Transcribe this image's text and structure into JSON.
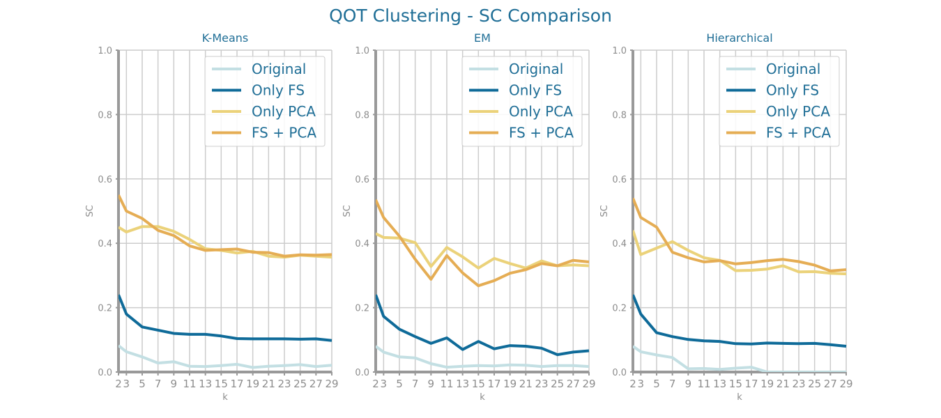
{
  "figure": {
    "title": "QOT Clustering - SC Comparison",
    "colors": {
      "title": "#1f6e96",
      "tick": "#8c8c8c",
      "grid": "#cccccc",
      "axis": "#999999",
      "legend_text": "#1f6e96"
    }
  },
  "chart_data": [
    {
      "type": "line",
      "title": "K-Means",
      "xlabel": "k",
      "ylabel": "SC",
      "xlim": [
        2,
        29
      ],
      "ylim": [
        0.0,
        1.0
      ],
      "grid": true,
      "legend_position": "top-right",
      "x": [
        2,
        3,
        5,
        7,
        9,
        11,
        13,
        15,
        17,
        19,
        21,
        23,
        25,
        27,
        29
      ],
      "xticks": [
        2,
        3,
        5,
        7,
        9,
        11,
        13,
        15,
        17,
        19,
        21,
        23,
        25,
        27,
        29
      ],
      "yticks": [
        "0.0",
        "0.2",
        "0.4",
        "0.6",
        "0.8",
        "1.0"
      ],
      "series": [
        {
          "name": "Original",
          "color": "#c3dfe3",
          "values": [
            0.082,
            0.063,
            0.047,
            0.028,
            0.032,
            0.018,
            0.017,
            0.02,
            0.024,
            0.014,
            0.018,
            0.02,
            0.023,
            0.017,
            0.021
          ]
        },
        {
          "name": "Only FS",
          "color": "#0f6b99",
          "values": [
            0.24,
            0.18,
            0.14,
            0.13,
            0.12,
            0.117,
            0.117,
            0.112,
            0.104,
            0.103,
            0.103,
            0.103,
            0.102,
            0.103,
            0.098
          ]
        },
        {
          "name": "Only PCA",
          "color": "#ebd27a",
          "values": [
            0.45,
            0.435,
            0.452,
            0.452,
            0.437,
            0.412,
            0.383,
            0.378,
            0.37,
            0.375,
            0.36,
            0.357,
            0.363,
            0.36,
            0.357
          ]
        },
        {
          "name": "FS + PCA",
          "color": "#e5ad54",
          "values": [
            0.55,
            0.5,
            0.477,
            0.44,
            0.424,
            0.392,
            0.378,
            0.38,
            0.382,
            0.372,
            0.371,
            0.36,
            0.364,
            0.363,
            0.365
          ]
        }
      ]
    },
    {
      "type": "line",
      "title": "EM",
      "xlabel": "k",
      "ylabel": "SC",
      "xlim": [
        2,
        29
      ],
      "ylim": [
        0.0,
        1.0
      ],
      "grid": true,
      "legend_position": "top-right",
      "x": [
        2,
        3,
        5,
        7,
        9,
        11,
        13,
        15,
        17,
        19,
        21,
        23,
        25,
        27,
        29
      ],
      "xticks": [
        2,
        3,
        5,
        7,
        9,
        11,
        13,
        15,
        17,
        19,
        21,
        23,
        25,
        27,
        29
      ],
      "yticks": [
        "0.0",
        "0.2",
        "0.4",
        "0.6",
        "0.8",
        "1.0"
      ],
      "series": [
        {
          "name": "Original",
          "color": "#c3dfe3",
          "values": [
            0.08,
            0.062,
            0.047,
            0.044,
            0.026,
            0.015,
            0.018,
            0.02,
            0.019,
            0.022,
            0.021,
            0.017,
            0.02,
            0.02,
            0.017
          ]
        },
        {
          "name": "Only FS",
          "color": "#0f6b99",
          "values": [
            0.24,
            0.173,
            0.133,
            0.11,
            0.089,
            0.106,
            0.07,
            0.095,
            0.072,
            0.082,
            0.08,
            0.074,
            0.054,
            0.062,
            0.066
          ]
        },
        {
          "name": "Only PCA",
          "color": "#ebd27a",
          "values": [
            0.43,
            0.418,
            0.416,
            0.402,
            0.328,
            0.387,
            0.358,
            0.323,
            0.353,
            0.337,
            0.323,
            0.345,
            0.33,
            0.333,
            0.33
          ]
        },
        {
          "name": "FS + PCA",
          "color": "#e5ad54",
          "values": [
            0.535,
            0.48,
            0.422,
            0.35,
            0.288,
            0.362,
            0.308,
            0.268,
            0.284,
            0.307,
            0.318,
            0.337,
            0.33,
            0.347,
            0.342
          ]
        }
      ]
    },
    {
      "type": "line",
      "title": "Hierarchical",
      "xlabel": "k",
      "ylabel": "SC",
      "xlim": [
        2,
        29
      ],
      "ylim": [
        0.0,
        1.0
      ],
      "grid": true,
      "legend_position": "top-right",
      "x": [
        2,
        3,
        5,
        7,
        9,
        11,
        13,
        15,
        17,
        19,
        21,
        23,
        25,
        27,
        29
      ],
      "xticks": [
        2,
        3,
        5,
        7,
        9,
        11,
        13,
        15,
        17,
        19,
        21,
        23,
        25,
        27,
        29
      ],
      "yticks": [
        "0.0",
        "0.2",
        "0.4",
        "0.6",
        "0.8",
        "1.0"
      ],
      "series": [
        {
          "name": "Original",
          "color": "#c3dfe3",
          "values": [
            0.08,
            0.063,
            0.053,
            0.045,
            0.01,
            0.011,
            0.008,
            0.012,
            0.015,
            0.0,
            0.0,
            0.0,
            0.0,
            0.0,
            0.0
          ]
        },
        {
          "name": "Only FS",
          "color": "#0f6b99",
          "values": [
            0.24,
            0.18,
            0.122,
            0.11,
            0.101,
            0.097,
            0.095,
            0.088,
            0.087,
            0.09,
            0.089,
            0.088,
            0.089,
            0.085,
            0.08
          ]
        },
        {
          "name": "Only PCA",
          "color": "#ebd27a",
          "values": [
            0.44,
            0.365,
            0.385,
            0.405,
            0.378,
            0.355,
            0.347,
            0.315,
            0.316,
            0.32,
            0.33,
            0.311,
            0.312,
            0.307,
            0.305
          ]
        },
        {
          "name": "FS + PCA",
          "color": "#e5ad54",
          "values": [
            0.54,
            0.48,
            0.45,
            0.372,
            0.355,
            0.342,
            0.346,
            0.336,
            0.34,
            0.346,
            0.35,
            0.343,
            0.332,
            0.314,
            0.318
          ]
        }
      ]
    }
  ]
}
